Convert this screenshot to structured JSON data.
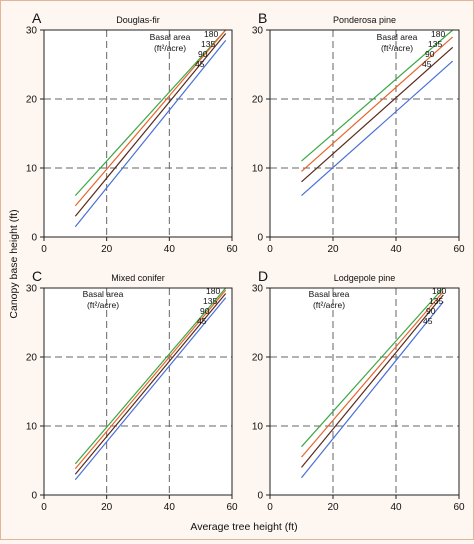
{
  "figure": {
    "ylabel": "Canopy base height (ft)",
    "xlabel": "Average tree height (ft)",
    "legend_title_line1": "Basal area",
    "legend_title_line2": "(ft²/acre)",
    "colors": {
      "180": "#3aa844",
      "135": "#e8642c",
      "90": "#5a2a1a",
      "45": "#4a6fd6"
    }
  },
  "chart_data": [
    {
      "type": "line",
      "letter": "A",
      "title": "Douglas-fir",
      "xlim": [
        0,
        60
      ],
      "ylim": [
        0,
        30
      ],
      "xticks": [
        0,
        20,
        40,
        60
      ],
      "yticks": [
        0,
        10,
        20,
        30
      ],
      "grid_x": [
        20,
        40
      ],
      "grid_y": [
        10,
        20
      ],
      "legend_position": "top-right",
      "series": [
        {
          "name": "180",
          "x": [
            10,
            58
          ],
          "y": [
            6.0,
            30
          ]
        },
        {
          "name": "135",
          "x": [
            10,
            58
          ],
          "y": [
            4.5,
            30
          ]
        },
        {
          "name": "90",
          "x": [
            10,
            58
          ],
          "y": [
            3.0,
            29.5
          ]
        },
        {
          "name": "45",
          "x": [
            10,
            58
          ],
          "y": [
            1.5,
            28.5
          ]
        }
      ]
    },
    {
      "type": "line",
      "letter": "B",
      "title": "Ponderosa pine",
      "xlim": [
        0,
        60
      ],
      "ylim": [
        0,
        30
      ],
      "xticks": [
        0,
        20,
        40,
        60
      ],
      "yticks": [
        0,
        10,
        20,
        30
      ],
      "grid_x": [
        20,
        40
      ],
      "grid_y": [
        10,
        20
      ],
      "legend_position": "top-right",
      "series": [
        {
          "name": "180",
          "x": [
            10,
            58
          ],
          "y": [
            11.0,
            30
          ]
        },
        {
          "name": "135",
          "x": [
            10,
            58
          ],
          "y": [
            9.5,
            29.0
          ]
        },
        {
          "name": "90",
          "x": [
            10,
            58
          ],
          "y": [
            8.0,
            27.5
          ]
        },
        {
          "name": "45",
          "x": [
            10,
            58
          ],
          "y": [
            6.0,
            25.5
          ]
        }
      ]
    },
    {
      "type": "line",
      "letter": "C",
      "title": "Mixed conifer",
      "xlim": [
        0,
        60
      ],
      "ylim": [
        0,
        30
      ],
      "xticks": [
        0,
        20,
        40,
        60
      ],
      "yticks": [
        0,
        10,
        20,
        30
      ],
      "grid_x": [
        20,
        40
      ],
      "grid_y": [
        10,
        20
      ],
      "legend_position": "top-center",
      "series": [
        {
          "name": "180",
          "x": [
            10,
            58
          ],
          "y": [
            4.5,
            30
          ]
        },
        {
          "name": "135",
          "x": [
            10,
            58
          ],
          "y": [
            3.8,
            29.7
          ]
        },
        {
          "name": "90",
          "x": [
            10,
            58
          ],
          "y": [
            3.0,
            29.2
          ]
        },
        {
          "name": "45",
          "x": [
            10,
            58
          ],
          "y": [
            2.2,
            28.6
          ]
        }
      ]
    },
    {
      "type": "line",
      "letter": "D",
      "title": "Lodgepole pine",
      "xlim": [
        0,
        60
      ],
      "ylim": [
        0,
        30
      ],
      "xticks": [
        0,
        20,
        40,
        60
      ],
      "yticks": [
        0,
        10,
        20,
        30
      ],
      "grid_x": [
        20,
        40
      ],
      "grid_y": [
        10,
        20
      ],
      "legend_position": "top-center",
      "series": [
        {
          "name": "180",
          "x": [
            10,
            55
          ],
          "y": [
            7.0,
            30
          ]
        },
        {
          "name": "135",
          "x": [
            10,
            55
          ],
          "y": [
            5.5,
            29.5
          ]
        },
        {
          "name": "90",
          "x": [
            10,
            55
          ],
          "y": [
            4.0,
            29.0
          ]
        },
        {
          "name": "45",
          "x": [
            10,
            55
          ],
          "y": [
            2.5,
            28.0
          ]
        }
      ]
    }
  ]
}
